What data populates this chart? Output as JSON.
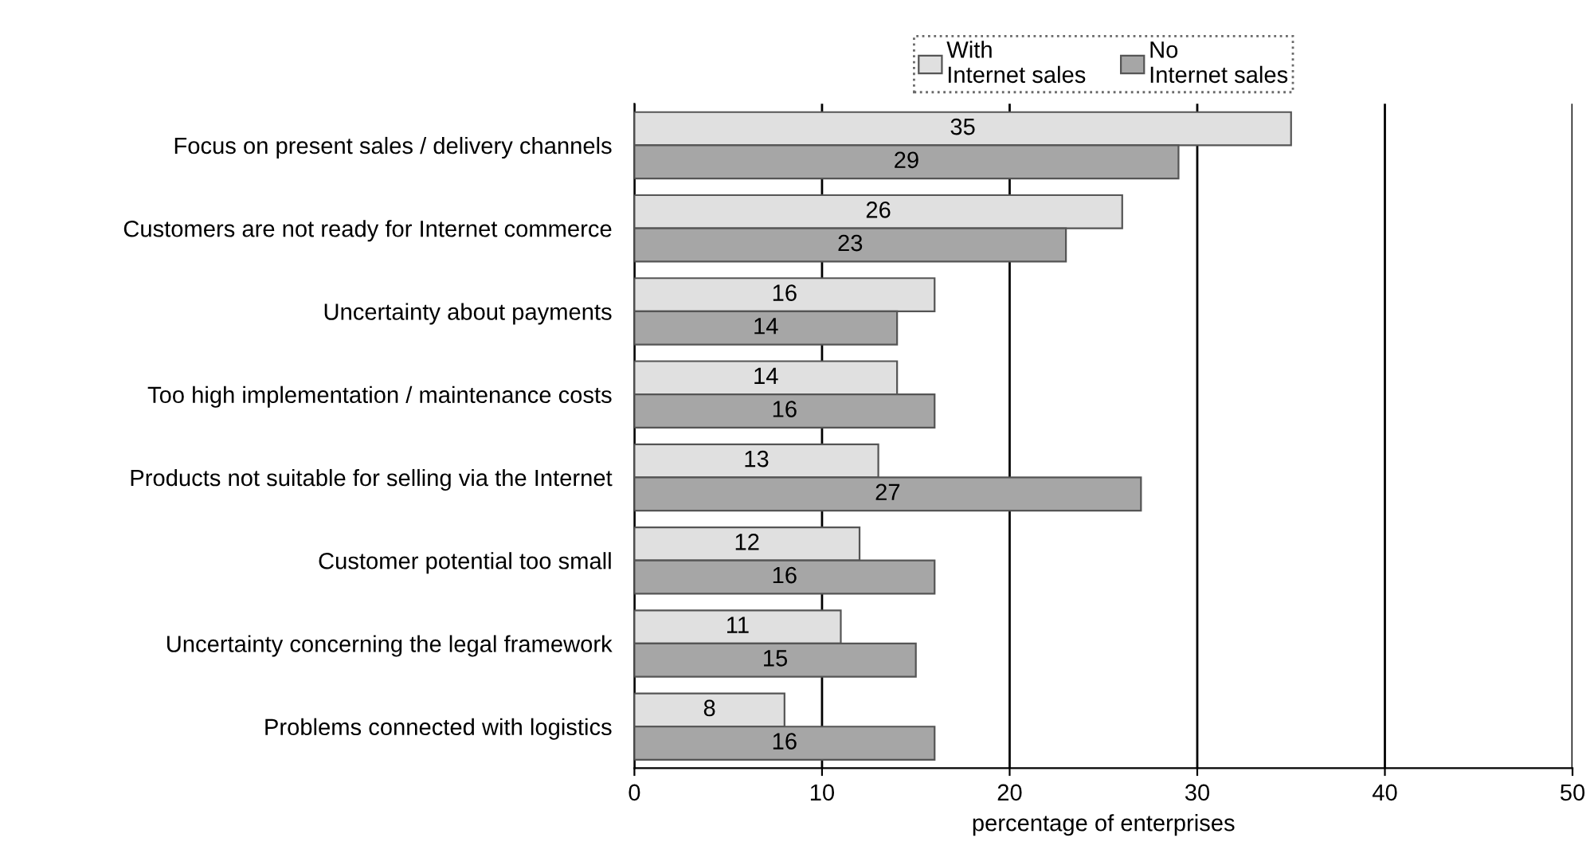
{
  "chart_data": {
    "type": "bar",
    "orientation": "horizontal",
    "xlabel": "percentage of enterprises",
    "categories": [
      "Focus on present sales / delivery channels",
      "Customers are not ready for Internet commerce",
      "Uncertainty about payments",
      "Too high implementation / maintenance costs",
      "Products not suitable for selling via the Internet",
      "Customer potential too small",
      "Uncertainty concerning the legal framework",
      "Problems connected with logistics"
    ],
    "series": [
      {
        "name": "With\nInternet sales",
        "color": "#e0e0e0",
        "values": [
          35,
          26,
          16,
          14,
          13,
          12,
          11,
          8
        ]
      },
      {
        "name": "No\nInternet sales",
        "color": "#a6a6a6",
        "values": [
          29,
          23,
          14,
          16,
          27,
          16,
          15,
          16
        ]
      }
    ],
    "xlim": [
      0,
      50
    ],
    "xticks": [
      0,
      10,
      20,
      30,
      40,
      50
    ],
    "grid": "x",
    "legend": "top",
    "data_labels": true
  }
}
